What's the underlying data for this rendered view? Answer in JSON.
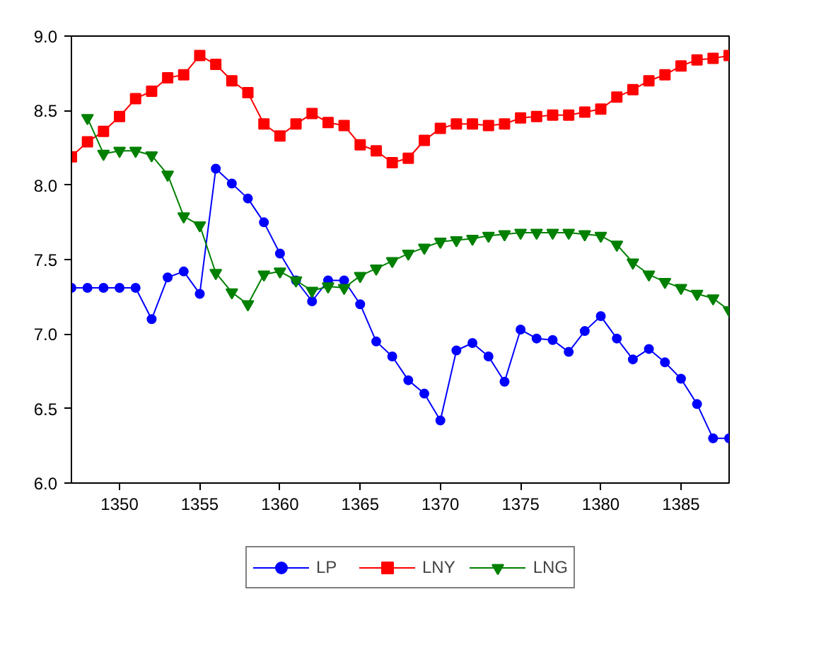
{
  "chart_data": {
    "type": "line",
    "x": [
      1347,
      1348,
      1349,
      1350,
      1351,
      1352,
      1353,
      1354,
      1355,
      1356,
      1357,
      1358,
      1359,
      1360,
      1361,
      1362,
      1363,
      1364,
      1365,
      1366,
      1367,
      1368,
      1369,
      1370,
      1371,
      1372,
      1373,
      1374,
      1375,
      1376,
      1377,
      1378,
      1379,
      1380,
      1381,
      1382,
      1383,
      1384,
      1385,
      1386,
      1387,
      1388
    ],
    "series": [
      {
        "name": "LP",
        "color": "#0000ff",
        "marker": "circle",
        "values": [
          7.31,
          7.31,
          7.31,
          7.31,
          7.31,
          7.1,
          7.38,
          7.42,
          7.27,
          8.11,
          8.01,
          7.91,
          7.75,
          7.54,
          7.36,
          7.22,
          7.36,
          7.36,
          7.2,
          6.95,
          6.85,
          6.69,
          6.6,
          6.42,
          6.89,
          6.94,
          6.85,
          6.68,
          7.03,
          6.97,
          6.96,
          6.88,
          7.02,
          7.12,
          6.97,
          6.83,
          6.9,
          6.81,
          6.7,
          6.53,
          6.3,
          6.3
        ]
      },
      {
        "name": "LNY",
        "color": "#ff0000",
        "marker": "square",
        "values": [
          8.19,
          8.29,
          8.36,
          8.46,
          8.58,
          8.63,
          8.72,
          8.74,
          8.87,
          8.81,
          8.7,
          8.62,
          8.41,
          8.33,
          8.41,
          8.48,
          8.42,
          8.4,
          8.27,
          8.23,
          8.15,
          8.18,
          8.3,
          8.38,
          8.41,
          8.41,
          8.4,
          8.41,
          8.45,
          8.46,
          8.47,
          8.47,
          8.49,
          8.51,
          8.59,
          8.64,
          8.7,
          8.74,
          8.8,
          8.84,
          8.85,
          8.87
        ]
      },
      {
        "name": "LNG",
        "color": "#008000",
        "marker": "triangle",
        "values": [
          null,
          8.45,
          8.21,
          8.23,
          8.23,
          8.2,
          8.07,
          7.79,
          7.73,
          7.41,
          7.28,
          7.2,
          7.4,
          7.42,
          7.36,
          7.29,
          7.32,
          7.31,
          7.39,
          7.44,
          7.49,
          7.54,
          7.58,
          7.62,
          7.63,
          7.64,
          7.66,
          7.67,
          7.68,
          7.68,
          7.68,
          7.68,
          7.67,
          7.66,
          7.6,
          7.48,
          7.4,
          7.35,
          7.31,
          7.27,
          7.24,
          7.16
        ]
      }
    ],
    "xlim": [
      1347,
      1388
    ],
    "xticks": [
      1350,
      1355,
      1360,
      1365,
      1370,
      1375,
      1380,
      1385
    ],
    "ylim": [
      6.0,
      9.0
    ],
    "yticks": [
      {
        "value": 6,
        "label": "6.0"
      },
      {
        "value": 6.5,
        "label": "6.5"
      },
      {
        "value": 7,
        "label": "7.0"
      },
      {
        "value": 7.5,
        "label": "7.5"
      },
      {
        "value": 8,
        "label": "8.0"
      },
      {
        "value": 8.5,
        "label": "8.5"
      },
      {
        "value": 9,
        "label": "9.0"
      }
    ],
    "grid": false,
    "legend": "bottom",
    "line_style": "solid"
  }
}
